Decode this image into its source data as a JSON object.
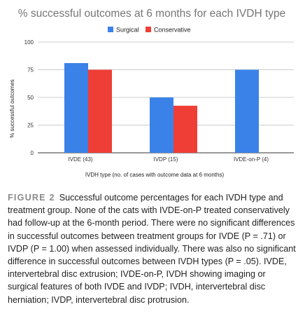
{
  "chart_data": {
    "type": "bar",
    "title": "% successful outcomes at 6 months for each IVDH type",
    "xlabel": "IVDH type (no. of cases with outcome data at 6 months)",
    "ylabel": "% successful outcomes",
    "categories": [
      "IVDE (43)",
      "IVDP (15)",
      "IVDE-on-P (4)"
    ],
    "series": [
      {
        "name": "Surgical",
        "color": "#3b82e8",
        "values": [
          81,
          50,
          75
        ]
      },
      {
        "name": "Conservative",
        "color": "#ef3e36",
        "values": [
          75,
          42.5,
          null
        ]
      }
    ],
    "ylim": [
      0,
      100
    ],
    "yticks": [
      0,
      25,
      50,
      75,
      100
    ],
    "grid": true,
    "legend_position": "top"
  },
  "caption": {
    "label": "FIGURE 2",
    "text": "Successful outcome percentages for each IVDH type and treatment group. None of the cats with IVDE-on-P treated conservatively had follow-up at the 6-month period. There were no significant differences in successful outcomes between treatment groups for IVDE (P = .71) or IVDP (P = 1.00) when assessed individually. There was also no significant difference in successful outcomes between IVDH types (P = .05). IVDE, intervertebral disc extrusion; IVDE-on-P, IVDH showing imaging or surgical features of both IVDE and IVDP; IVDH, intervertebral disc herniation; IVDP, intervertebral disc protrusion."
  }
}
